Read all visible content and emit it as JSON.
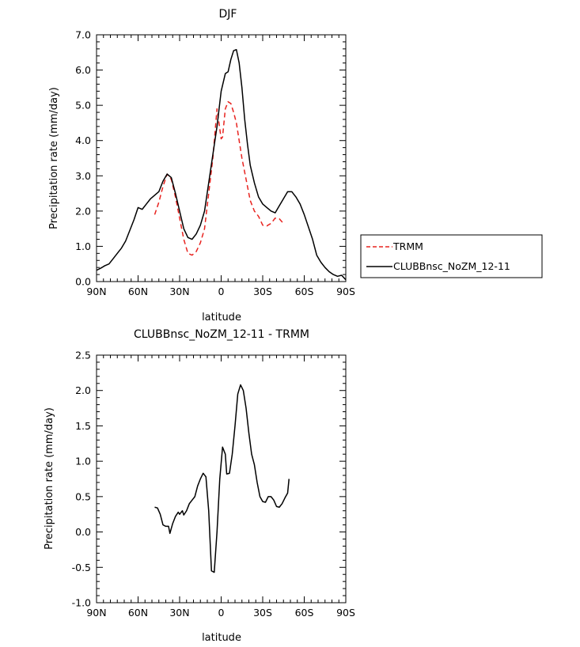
{
  "chart_data": [
    {
      "type": "line",
      "title": "DJF",
      "xlabel": "latitude",
      "ylabel": "Precipitation rate (mm/day)",
      "x_domain": [
        90,
        -90
      ],
      "x_ticks": [
        90,
        60,
        30,
        0,
        -30,
        -60,
        -90
      ],
      "x_tick_labels": [
        "90N",
        "60N",
        "30N",
        "0",
        "30S",
        "60S",
        "90S"
      ],
      "ylim": [
        0,
        7
      ],
      "y_ticks": [
        0,
        1,
        2,
        3,
        4,
        5,
        6,
        7
      ],
      "y_tick_labels": [
        "0.0",
        "1.0",
        "2.0",
        "3.0",
        "4.0",
        "5.0",
        "6.0",
        "7.0"
      ],
      "series": [
        {
          "name": "TRMM",
          "color": "#e8231f",
          "dash": "dashed",
          "points": [
            [
              48,
              1.9
            ],
            [
              45,
              2.25
            ],
            [
              42,
              2.7
            ],
            [
              39,
              3.05
            ],
            [
              36,
              2.9
            ],
            [
              33,
              2.4
            ],
            [
              30,
              1.8
            ],
            [
              27,
              1.2
            ],
            [
              24,
              0.8
            ],
            [
              21,
              0.75
            ],
            [
              18,
              0.85
            ],
            [
              15,
              1.1
            ],
            [
              12,
              1.5
            ],
            [
              9,
              2.5
            ],
            [
              6,
              3.5
            ],
            [
              3,
              4.9
            ],
            [
              0,
              4.05
            ],
            [
              -1,
              4.1
            ],
            [
              -3,
              4.9
            ],
            [
              -5,
              5.1
            ],
            [
              -7,
              5.05
            ],
            [
              -9,
              4.8
            ],
            [
              -11,
              4.5
            ],
            [
              -13,
              4.0
            ],
            [
              -15,
              3.5
            ],
            [
              -18,
              2.9
            ],
            [
              -21,
              2.3
            ],
            [
              -24,
              2.0
            ],
            [
              -27,
              1.85
            ],
            [
              -30,
              1.6
            ],
            [
              -33,
              1.58
            ],
            [
              -36,
              1.65
            ],
            [
              -39,
              1.8
            ],
            [
              -42,
              1.78
            ],
            [
              -45,
              1.65
            ]
          ]
        },
        {
          "name": "CLUBBnsc_NoZM_12-11",
          "color": "#000000",
          "dash": "solid",
          "points": [
            [
              90,
              0.32
            ],
            [
              87,
              0.38
            ],
            [
              84,
              0.45
            ],
            [
              81,
              0.5
            ],
            [
              78,
              0.65
            ],
            [
              75,
              0.8
            ],
            [
              72,
              0.95
            ],
            [
              69,
              1.15
            ],
            [
              66,
              1.45
            ],
            [
              63,
              1.75
            ],
            [
              60,
              2.1
            ],
            [
              57,
              2.05
            ],
            [
              54,
              2.2
            ],
            [
              51,
              2.35
            ],
            [
              48,
              2.45
            ],
            [
              45,
              2.55
            ],
            [
              42,
              2.85
            ],
            [
              39,
              3.05
            ],
            [
              36,
              2.95
            ],
            [
              33,
              2.5
            ],
            [
              30,
              2.0
            ],
            [
              27,
              1.5
            ],
            [
              24,
              1.25
            ],
            [
              21,
              1.2
            ],
            [
              18,
              1.35
            ],
            [
              15,
              1.6
            ],
            [
              12,
              2.0
            ],
            [
              9,
              2.8
            ],
            [
              6,
              3.6
            ],
            [
              3,
              4.4
            ],
            [
              0,
              5.4
            ],
            [
              -3,
              5.9
            ],
            [
              -5,
              5.95
            ],
            [
              -7,
              6.3
            ],
            [
              -9,
              6.55
            ],
            [
              -11,
              6.58
            ],
            [
              -13,
              6.2
            ],
            [
              -15,
              5.5
            ],
            [
              -17,
              4.6
            ],
            [
              -19,
              3.9
            ],
            [
              -21,
              3.3
            ],
            [
              -24,
              2.8
            ],
            [
              -27,
              2.4
            ],
            [
              -30,
              2.2
            ],
            [
              -33,
              2.1
            ],
            [
              -36,
              2.0
            ],
            [
              -39,
              1.95
            ],
            [
              -42,
              2.15
            ],
            [
              -45,
              2.35
            ],
            [
              -48,
              2.55
            ],
            [
              -51,
              2.55
            ],
            [
              -54,
              2.4
            ],
            [
              -57,
              2.2
            ],
            [
              -60,
              1.9
            ],
            [
              -63,
              1.55
            ],
            [
              -66,
              1.2
            ],
            [
              -69,
              0.75
            ],
            [
              -72,
              0.55
            ],
            [
              -75,
              0.4
            ],
            [
              -78,
              0.28
            ],
            [
              -81,
              0.2
            ],
            [
              -84,
              0.15
            ],
            [
              -87,
              0.18
            ],
            [
              -90,
              0.05
            ]
          ]
        }
      ],
      "legend": {
        "placement": "right",
        "entries": [
          {
            "label": "TRMM",
            "color": "#e8231f",
            "dash": "dashed"
          },
          {
            "label": "CLUBBnsc_NoZM_12-11",
            "color": "#000000",
            "dash": "solid"
          }
        ]
      }
    },
    {
      "type": "line",
      "title": "CLUBBnsc_NoZM_12-11 - TRMM",
      "xlabel": "latitude",
      "ylabel": "Precipitation rate (mm/day)",
      "x_domain": [
        90,
        -90
      ],
      "x_ticks": [
        90,
        60,
        30,
        0,
        -30,
        -60,
        -90
      ],
      "x_tick_labels": [
        "90N",
        "60N",
        "30N",
        "0",
        "30S",
        "60S",
        "90S"
      ],
      "ylim": [
        -1,
        2.5
      ],
      "y_ticks": [
        -1,
        -0.5,
        0,
        0.5,
        1,
        1.5,
        2,
        2.5
      ],
      "y_tick_labels": [
        "-1.0",
        "-0.5",
        "0.0",
        "0.5",
        "1.0",
        "1.5",
        "2.0",
        "2.5"
      ],
      "series": [
        {
          "color": "#000000",
          "dash": "solid",
          "points": [
            [
              48,
              0.35
            ],
            [
              46,
              0.34
            ],
            [
              44,
              0.25
            ],
            [
              42,
              0.1
            ],
            [
              40,
              0.08
            ],
            [
              38,
              0.08
            ],
            [
              37,
              -0.02
            ],
            [
              35,
              0.12
            ],
            [
              33,
              0.22
            ],
            [
              31,
              0.28
            ],
            [
              30,
              0.25
            ],
            [
              28,
              0.3
            ],
            [
              27,
              0.24
            ],
            [
              25,
              0.3
            ],
            [
              23,
              0.4
            ],
            [
              21,
              0.45
            ],
            [
              19,
              0.5
            ],
            [
              17,
              0.65
            ],
            [
              15,
              0.75
            ],
            [
              13,
              0.83
            ],
            [
              11,
              0.78
            ],
            [
              9,
              0.3
            ],
            [
              7,
              -0.55
            ],
            [
              5,
              -0.57
            ],
            [
              3,
              0.0
            ],
            [
              1,
              0.75
            ],
            [
              -1,
              1.2
            ],
            [
              -3,
              1.1
            ],
            [
              -4,
              0.82
            ],
            [
              -6,
              0.83
            ],
            [
              -8,
              1.1
            ],
            [
              -10,
              1.5
            ],
            [
              -12,
              1.95
            ],
            [
              -14,
              2.08
            ],
            [
              -16,
              2.0
            ],
            [
              -18,
              1.75
            ],
            [
              -20,
              1.4
            ],
            [
              -22,
              1.1
            ],
            [
              -24,
              0.95
            ],
            [
              -26,
              0.7
            ],
            [
              -28,
              0.5
            ],
            [
              -30,
              0.43
            ],
            [
              -32,
              0.42
            ],
            [
              -34,
              0.5
            ],
            [
              -36,
              0.5
            ],
            [
              -38,
              0.45
            ],
            [
              -40,
              0.36
            ],
            [
              -42,
              0.35
            ],
            [
              -44,
              0.4
            ],
            [
              -46,
              0.48
            ],
            [
              -48,
              0.55
            ],
            [
              -49,
              0.75
            ]
          ]
        }
      ]
    }
  ]
}
